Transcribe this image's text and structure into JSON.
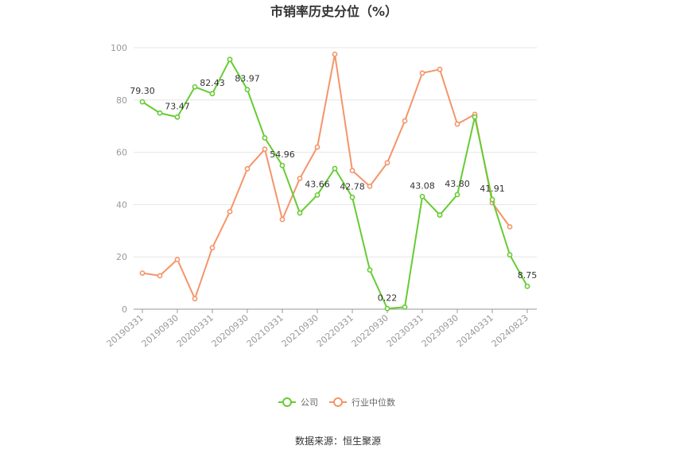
{
  "source_label": "数据来源：恒生聚源",
  "colors": {
    "company": "#66cc33",
    "industry": "#f4956a",
    "grid": "#e6e6e6",
    "axis": "#999999"
  },
  "chart_data": {
    "type": "line",
    "title": "市销率历史分位（%）",
    "xlabel": "",
    "ylabel": "",
    "ylim": [
      0,
      100
    ],
    "yticks": [
      0,
      20,
      40,
      60,
      80,
      100
    ],
    "grid": true,
    "legend_position": "bottom",
    "x": [
      "20190331",
      "20190630",
      "20190930",
      "20191231",
      "20200331",
      "20200630",
      "20200930",
      "20201231",
      "20210331",
      "20210630",
      "20210930",
      "20211231",
      "20220331",
      "20220630",
      "20220930",
      "20221231",
      "20230331",
      "20230630",
      "20230930",
      "20231231",
      "20240331",
      "20240630",
      "20240823"
    ],
    "x_tick_labels": [
      "20190331",
      "20190930",
      "20200331",
      "20200930",
      "20210331",
      "20210930",
      "20220331",
      "20220930",
      "20230331",
      "20230930",
      "20240331",
      "20240823"
    ],
    "series": [
      {
        "name": "公司",
        "values": [
          79.3,
          75.0,
          73.47,
          85.0,
          82.43,
          95.5,
          83.97,
          65.5,
          54.96,
          36.8,
          43.66,
          53.8,
          42.78,
          15.0,
          0.22,
          0.8,
          43.08,
          36.0,
          43.8,
          73.5,
          41.91,
          20.8,
          8.75
        ],
        "labels": [
          "79.30",
          "",
          "73.47",
          "",
          "82.43",
          "",
          "83.97",
          "",
          "54.96",
          "",
          "43.66",
          "",
          "42.78",
          "",
          "0.22",
          "",
          "43.08",
          "",
          "43.80",
          "",
          "41.91",
          "",
          "8.75"
        ]
      },
      {
        "name": "行业中位数",
        "values": [
          13.8,
          12.8,
          19.0,
          4.0,
          23.5,
          37.3,
          53.7,
          61.2,
          34.3,
          50.0,
          62.0,
          97.5,
          53.0,
          47.0,
          56.0,
          72.0,
          90.3,
          91.7,
          70.8,
          74.5,
          40.7,
          31.5,
          null
        ]
      }
    ]
  }
}
